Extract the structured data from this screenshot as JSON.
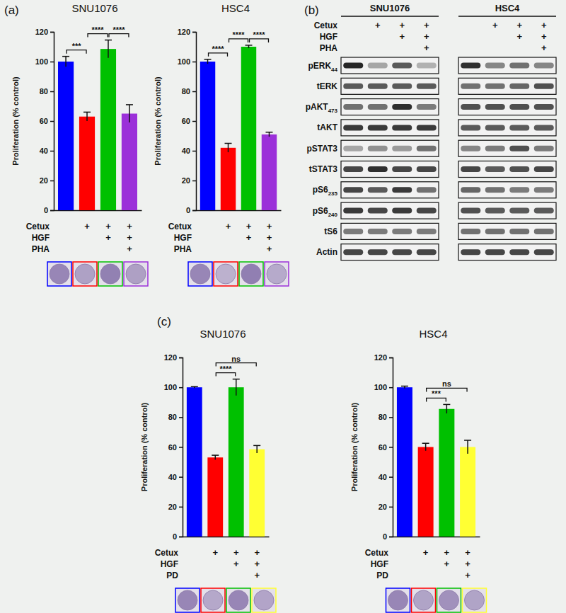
{
  "panel_labels": [
    "(a)",
    "(b)",
    "(c)"
  ],
  "chart_data": [
    {
      "type": "bar",
      "title": "SNU1076",
      "ylabel": "Proliferation (% control)",
      "categories": [
        null,
        null,
        null,
        null
      ],
      "values": [
        100,
        63,
        108.5,
        65
      ],
      "errors": [
        3.5,
        3,
        6,
        6
      ],
      "colors": [
        "#0000ff",
        "#ff0000",
        "#00c000",
        "#9b30d9"
      ],
      "ylim": [
        0,
        120
      ],
      "yticks": [
        0,
        20,
        40,
        60,
        80,
        100,
        120
      ],
      "annotations": [
        {
          "from": 0,
          "to": 1,
          "text": "***"
        },
        {
          "from": 1,
          "to": 2,
          "text": "****"
        },
        {
          "from": 2,
          "to": 3,
          "text": "****"
        }
      ],
      "treatments": [
        {
          "name": "Cetux",
          "marks": [
            null,
            "+",
            "+",
            "+"
          ]
        },
        {
          "name": "HGF",
          "marks": [
            null,
            null,
            "+",
            "+"
          ]
        },
        {
          "name": "PHA",
          "marks": [
            null,
            null,
            null,
            "+"
          ]
        }
      ]
    },
    {
      "type": "bar",
      "title": "HSC4",
      "ylabel": "Proliferation (% control)",
      "categories": [
        null,
        null,
        null,
        null
      ],
      "values": [
        100,
        42,
        110,
        51
      ],
      "errors": [
        1.5,
        3,
        1,
        1.5
      ],
      "colors": [
        "#0000ff",
        "#ff0000",
        "#00c000",
        "#9b30d9"
      ],
      "ylim": [
        0,
        120
      ],
      "yticks": [
        0,
        20,
        40,
        60,
        80,
        100,
        120
      ],
      "annotations": [
        {
          "from": 0,
          "to": 1,
          "text": "****"
        },
        {
          "from": 1,
          "to": 2,
          "text": "****"
        },
        {
          "from": 2,
          "to": 3,
          "text": "****"
        }
      ],
      "treatments": [
        {
          "name": "Cetux",
          "marks": [
            null,
            "+",
            "+",
            "+"
          ]
        },
        {
          "name": "HGF",
          "marks": [
            null,
            null,
            "+",
            "+"
          ]
        },
        {
          "name": "PHA",
          "marks": [
            null,
            null,
            null,
            "+"
          ]
        }
      ]
    },
    {
      "type": "bar",
      "title": "SNU1076",
      "ylabel": "Proliferation (% control)",
      "categories": [
        null,
        null,
        null,
        null
      ],
      "values": [
        100,
        53,
        100,
        58.5
      ],
      "errors": [
        0.5,
        1.5,
        5.5,
        2.5
      ],
      "colors": [
        "#0000ff",
        "#ff0000",
        "#00c000",
        "#ffff33"
      ],
      "ylim": [
        0,
        120
      ],
      "yticks": [
        0,
        20,
        40,
        60,
        80,
        100,
        120
      ],
      "annotations": [
        {
          "from": 1,
          "to": 2,
          "text": "****"
        },
        {
          "from": 1,
          "to": 3,
          "text": "ns"
        }
      ],
      "treatments": [
        {
          "name": "Cetux",
          "marks": [
            null,
            "+",
            "+",
            "+"
          ]
        },
        {
          "name": "HGF",
          "marks": [
            null,
            null,
            "+",
            "+"
          ]
        },
        {
          "name": "PD",
          "marks": [
            null,
            null,
            null,
            "+"
          ]
        }
      ]
    },
    {
      "type": "bar",
      "title": "HSC4",
      "ylabel": "Proliferation (% control)",
      "categories": [
        null,
        null,
        null,
        null
      ],
      "values": [
        100,
        60,
        85.5,
        60
      ],
      "errors": [
        0.8,
        2.5,
        3,
        4.5
      ],
      "colors": [
        "#0000ff",
        "#ff0000",
        "#00c000",
        "#ffff33"
      ],
      "ylim": [
        0,
        120
      ],
      "yticks": [
        0,
        20,
        40,
        60,
        80,
        100,
        120
      ],
      "annotations": [
        {
          "from": 1,
          "to": 2,
          "text": "***"
        },
        {
          "from": 1,
          "to": 3,
          "text": "ns"
        }
      ],
      "treatments": [
        {
          "name": "Cetux",
          "marks": [
            null,
            "+",
            "+",
            "+"
          ]
        },
        {
          "name": "HGF",
          "marks": [
            null,
            null,
            "+",
            "+"
          ]
        },
        {
          "name": "PD",
          "marks": [
            null,
            null,
            null,
            "+"
          ]
        }
      ]
    }
  ],
  "blot": {
    "treatments": [
      "Cetux",
      "HGF",
      "PHA"
    ],
    "rows": [
      {
        "label": "pERK",
        "sub": "44"
      },
      {
        "label": "tERK"
      },
      {
        "label": "pAKT",
        "sub": "473"
      },
      {
        "label": "tAKT"
      },
      {
        "label": "pSTAT3"
      },
      {
        "label": "tSTAT3"
      },
      {
        "label": "pS6",
        "sub": "235"
      },
      {
        "label": "pS6",
        "sub": "240"
      },
      {
        "label": "tS6"
      },
      {
        "label": "Actin"
      }
    ],
    "cell_lines": [
      {
        "name": "SNU1076",
        "marks": [
          [
            null,
            "+",
            "+",
            "+"
          ],
          [
            null,
            null,
            "+",
            "+"
          ],
          [
            null,
            null,
            null,
            "+"
          ]
        ],
        "signal": [
          [
            0.95,
            0.35,
            0.7,
            0.3
          ],
          [
            0.7,
            0.7,
            0.7,
            0.7
          ],
          [
            0.6,
            0.6,
            0.9,
            0.55
          ],
          [
            0.85,
            0.85,
            0.85,
            0.85
          ],
          [
            0.35,
            0.45,
            0.4,
            0.6
          ],
          [
            0.8,
            0.9,
            0.8,
            0.8
          ],
          [
            0.8,
            0.7,
            0.85,
            0.6
          ],
          [
            0.85,
            0.8,
            0.85,
            0.8
          ],
          [
            0.55,
            0.55,
            0.55,
            0.55
          ],
          [
            0.8,
            0.8,
            0.8,
            0.8
          ]
        ]
      },
      {
        "name": "HSC4",
        "marks": [
          [
            null,
            "+",
            "+",
            "+"
          ],
          [
            null,
            null,
            "+",
            "+"
          ],
          [
            null,
            null,
            null,
            "+"
          ]
        ],
        "signal": [
          [
            0.9,
            0.5,
            0.6,
            0.5
          ],
          [
            0.6,
            0.6,
            0.65,
            0.75
          ],
          [
            0.75,
            0.75,
            0.75,
            0.75
          ],
          [
            0.7,
            0.7,
            0.7,
            0.7
          ],
          [
            0.5,
            0.55,
            0.75,
            0.55
          ],
          [
            0.8,
            0.7,
            0.75,
            0.8
          ],
          [
            0.65,
            0.6,
            0.55,
            0.55
          ],
          [
            0.75,
            0.7,
            0.7,
            0.7
          ],
          [
            0.6,
            0.6,
            0.6,
            0.6
          ],
          [
            0.8,
            0.8,
            0.8,
            0.8
          ]
        ]
      }
    ]
  }
}
